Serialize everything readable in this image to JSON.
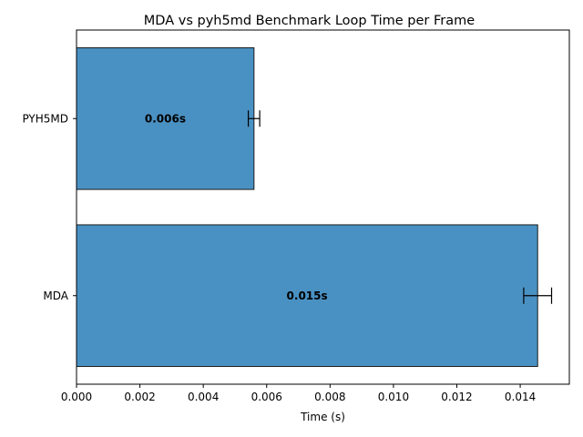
{
  "chart_data": {
    "type": "bar",
    "orientation": "horizontal",
    "title": "MDA vs pyh5md Benchmark Loop Time per Frame",
    "xlabel": "Time (s)",
    "ylabel": "",
    "categories": [
      "MDA",
      "PYH5MD"
    ],
    "values": [
      0.01455,
      0.0056
    ],
    "errors": [
      0.00044,
      0.00018
    ],
    "data_labels": [
      "0.015s",
      "0.006s"
    ],
    "xlim": [
      0,
      0.01555
    ],
    "xticks": [
      0,
      0.002,
      0.004,
      0.006,
      0.008,
      0.01,
      0.012,
      0.014
    ],
    "xtick_labels": [
      "0.000",
      "0.002",
      "0.004",
      "0.006",
      "0.008",
      "0.010",
      "0.012",
      "0.014"
    ],
    "bar_color": "#4a91c3",
    "edge_color": "#1a1a1a",
    "grid": false,
    "legend": "none"
  }
}
